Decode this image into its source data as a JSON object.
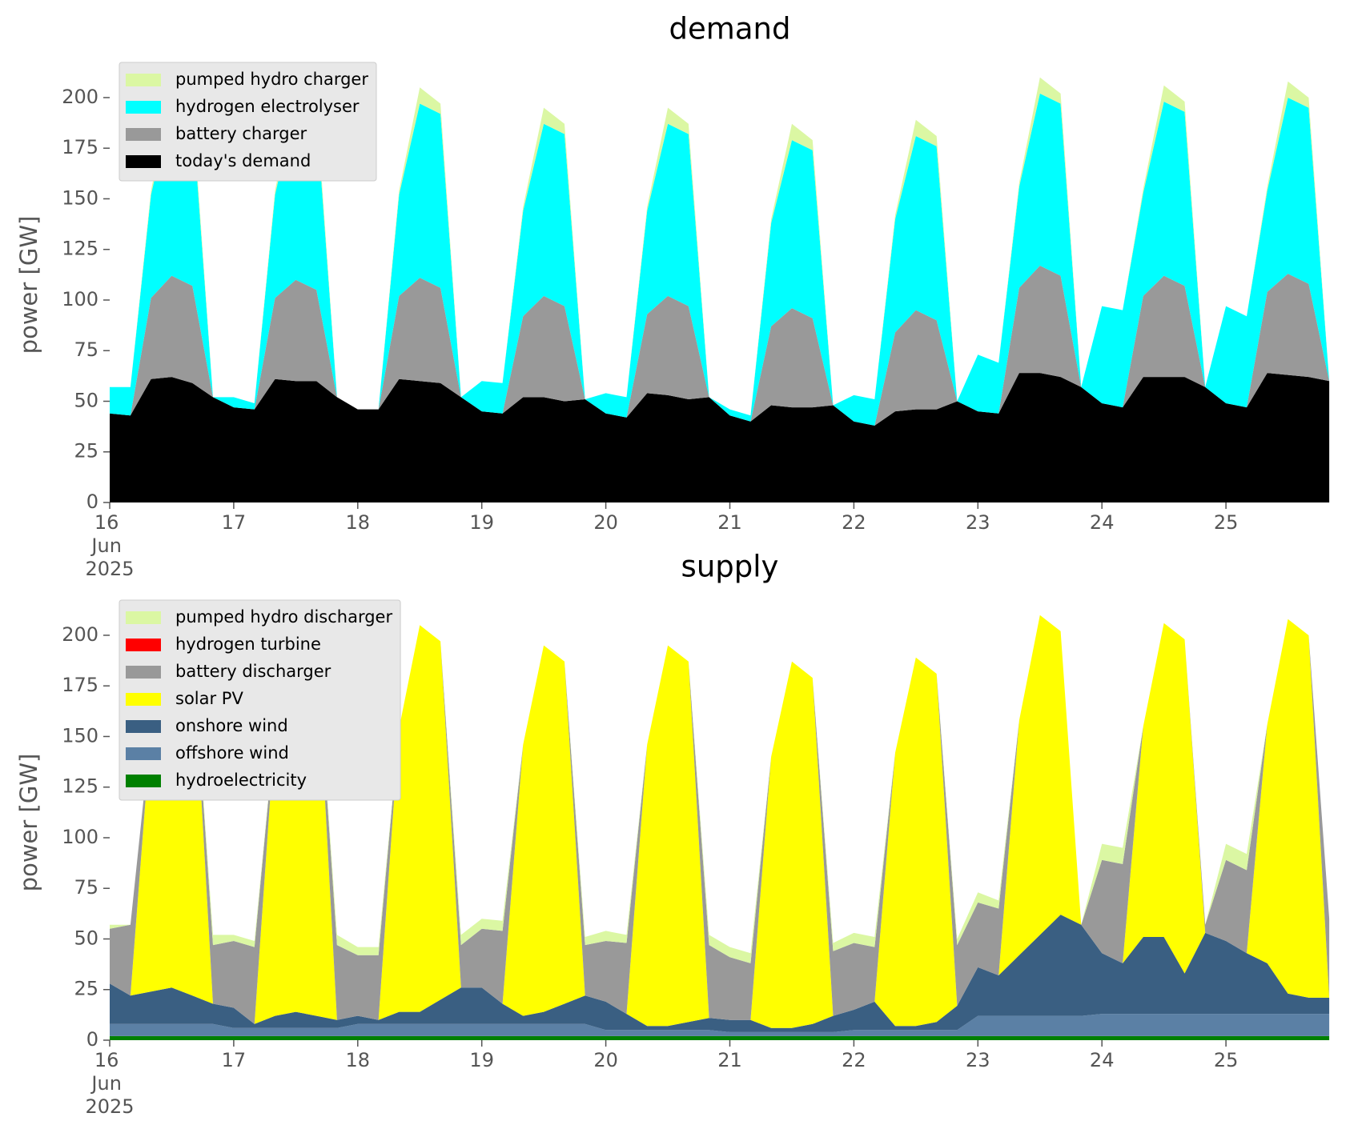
{
  "chart_data": [
    {
      "type": "area",
      "title": "demand",
      "ylabel": "power [GW]",
      "legend": "upper left",
      "x": [
        16,
        16.167,
        16.333,
        16.5,
        16.667,
        16.833,
        17,
        17.167,
        17.333,
        17.5,
        17.667,
        17.833,
        18,
        18.167,
        18.333,
        18.5,
        18.667,
        18.833,
        19,
        19.167,
        19.333,
        19.5,
        19.667,
        19.833,
        20,
        20.167,
        20.333,
        20.5,
        20.667,
        20.833,
        21,
        21.167,
        21.333,
        21.5,
        21.667,
        21.833,
        22,
        22.167,
        22.333,
        22.5,
        22.667,
        22.833,
        23,
        23.167,
        23.333,
        23.5,
        23.667,
        23.833,
        24,
        24.167,
        24.333,
        24.5,
        24.667,
        24.833,
        25,
        25.167,
        25.333,
        25.5,
        25.667,
        25.833
      ],
      "xlim": [
        16,
        26
      ],
      "xticks": [
        {
          "value": 16,
          "label": "16\nJun\n2025"
        },
        17,
        18,
        19,
        20,
        21,
        22,
        23,
        24,
        25
      ],
      "ylim": [
        0,
        215
      ],
      "yticks": [
        0,
        25,
        50,
        75,
        100,
        125,
        150,
        175,
        200
      ],
      "series": [
        {
          "name": "pumped hydro charger",
          "color": "#dbf7a3",
          "values": [
            0,
            0,
            2,
            8,
            5,
            0,
            0,
            0,
            2,
            8,
            5,
            0,
            0,
            0,
            2,
            8,
            5,
            0,
            0,
            0,
            2,
            8,
            5,
            0,
            0,
            0,
            2,
            8,
            5,
            0,
            0,
            0,
            2,
            8,
            5,
            0,
            0,
            0,
            2,
            8,
            5,
            0,
            0,
            0,
            2,
            8,
            5,
            0,
            0,
            0,
            2,
            8,
            5,
            0,
            0,
            0,
            2,
            8,
            5,
            0
          ]
        },
        {
          "name": "hydrogen electrolyser",
          "color": "#00ffff",
          "values": [
            13,
            14,
            51,
            85,
            85,
            0,
            5,
            3,
            51,
            87,
            87,
            0,
            0,
            0,
            50,
            86,
            86,
            0,
            15,
            15,
            52,
            85,
            85,
            0,
            10,
            10,
            51,
            85,
            85,
            0,
            3,
            3,
            51,
            83,
            83,
            0,
            13,
            13,
            56,
            86,
            86,
            0,
            28,
            25,
            50,
            85,
            85,
            0,
            48,
            48,
            51,
            86,
            86,
            0,
            48,
            45,
            50,
            87,
            87,
            0
          ]
        },
        {
          "name": "battery charger",
          "color": "#999999",
          "values": [
            0,
            0,
            40,
            50,
            48,
            0,
            0,
            0,
            40,
            50,
            45,
            0,
            0,
            0,
            41,
            51,
            47,
            0,
            0,
            0,
            40,
            50,
            47,
            0,
            0,
            0,
            39,
            49,
            46,
            0,
            0,
            0,
            39,
            49,
            44,
            0,
            0,
            0,
            39,
            49,
            44,
            0,
            0,
            0,
            42,
            53,
            50,
            0,
            0,
            0,
            40,
            50,
            45,
            0,
            0,
            0,
            40,
            50,
            46,
            0
          ]
        },
        {
          "name": "today's demand",
          "color": "#000000",
          "values": [
            44,
            43,
            61,
            62,
            59,
            52,
            47,
            46,
            61,
            60,
            60,
            52,
            46,
            46,
            61,
            60,
            59,
            52,
            45,
            44,
            52,
            52,
            50,
            51,
            44,
            42,
            54,
            53,
            51,
            52,
            43,
            40,
            48,
            47,
            47,
            48,
            40,
            38,
            45,
            46,
            46,
            50,
            45,
            44,
            64,
            64,
            62,
            57,
            49,
            47,
            62,
            62,
            62,
            57,
            49,
            47,
            64,
            63,
            62,
            60
          ]
        }
      ]
    },
    {
      "type": "area",
      "title": "supply",
      "ylabel": "power [GW]",
      "legend": "upper left",
      "x": [
        16,
        16.167,
        16.333,
        16.5,
        16.667,
        16.833,
        17,
        17.167,
        17.333,
        17.5,
        17.667,
        17.833,
        18,
        18.167,
        18.333,
        18.5,
        18.667,
        18.833,
        19,
        19.167,
        19.333,
        19.5,
        19.667,
        19.833,
        20,
        20.167,
        20.333,
        20.5,
        20.667,
        20.833,
        21,
        21.167,
        21.333,
        21.5,
        21.667,
        21.833,
        22,
        22.167,
        22.333,
        22.5,
        22.667,
        22.833,
        23,
        23.167,
        23.333,
        23.5,
        23.667,
        23.833,
        24,
        24.167,
        24.333,
        24.5,
        24.667,
        24.833,
        25,
        25.167,
        25.333,
        25.5,
        25.667,
        25.833
      ],
      "xlim": [
        16,
        26
      ],
      "xticks": [
        {
          "value": 16,
          "label": "16\nJun\n2025"
        },
        17,
        18,
        19,
        20,
        21,
        22,
        23,
        24,
        25
      ],
      "ylim": [
        0,
        215
      ],
      "yticks": [
        0,
        25,
        50,
        75,
        100,
        125,
        150,
        175,
        200
      ],
      "series": [
        {
          "name": "pumped hydro discharger",
          "color": "#dbf7a3",
          "values": [
            2,
            0,
            0,
            0,
            0,
            5,
            3,
            3,
            0,
            0,
            0,
            5,
            4,
            4,
            0,
            0,
            0,
            5,
            5,
            5,
            0,
            0,
            0,
            4,
            5,
            4,
            0,
            0,
            0,
            5,
            5,
            5,
            0,
            0,
            0,
            4,
            5,
            5,
            0,
            0,
            0,
            3,
            5,
            4,
            0,
            0,
            0,
            0,
            8,
            8,
            0,
            0,
            0,
            0,
            8,
            8,
            0,
            0,
            0,
            0
          ]
        },
        {
          "name": "hydrogen turbine",
          "color": "#ff0000",
          "values": [
            0,
            0,
            0,
            0,
            0,
            0,
            0,
            0,
            0,
            0,
            0,
            0,
            0,
            0,
            0,
            0,
            0,
            0,
            0,
            0,
            0,
            0,
            0,
            0,
            0,
            0,
            0,
            0,
            0,
            0,
            0,
            0,
            0,
            0,
            0,
            0,
            0,
            0,
            0,
            0,
            0,
            0,
            0,
            0,
            0,
            0,
            0,
            0,
            0,
            0,
            0,
            0,
            0,
            0,
            0,
            0,
            0,
            0,
            0,
            0
          ]
        },
        {
          "name": "battery discharger",
          "color": "#999999",
          "values": [
            27,
            35,
            0,
            0,
            0,
            29,
            33,
            38,
            0,
            0,
            0,
            37,
            30,
            32,
            0,
            0,
            0,
            21,
            29,
            36,
            0,
            0,
            0,
            25,
            30,
            35,
            0,
            0,
            0,
            36,
            31,
            28,
            0,
            0,
            0,
            32,
            33,
            27,
            0,
            0,
            0,
            30,
            32,
            33,
            0,
            0,
            0,
            0,
            46,
            49,
            0,
            0,
            0,
            4,
            40,
            41,
            0,
            0,
            0,
            39
          ]
        },
        {
          "name": "solar PV",
          "color": "#ffff00",
          "values": [
            0,
            0,
            130,
            179,
            175,
            0,
            0,
            0,
            142,
            191,
            185,
            0,
            0,
            0,
            140,
            191,
            177,
            0,
            0,
            0,
            134,
            181,
            169,
            0,
            0,
            0,
            139,
            188,
            178,
            0,
            0,
            0,
            134,
            181,
            171,
            0,
            0,
            0,
            135,
            182,
            172,
            0,
            0,
            0,
            116,
            158,
            140,
            0,
            0,
            0,
            104,
            155,
            165,
            0,
            0,
            0,
            118,
            185,
            179,
            0
          ]
        },
        {
          "name": "onshore wind",
          "color": "#3a5f82",
          "values": [
            20,
            14,
            16,
            18,
            14,
            10,
            10,
            2,
            6,
            8,
            6,
            4,
            4,
            2,
            6,
            6,
            12,
            18,
            18,
            10,
            4,
            6,
            10,
            14,
            14,
            8,
            2,
            2,
            4,
            6,
            6,
            6,
            2,
            2,
            4,
            8,
            10,
            14,
            2,
            2,
            4,
            12,
            24,
            20,
            30,
            40,
            50,
            45,
            30,
            25,
            38,
            38,
            20,
            40,
            36,
            30,
            25,
            10,
            8,
            8
          ]
        },
        {
          "name": "offshore wind",
          "color": "#5b80a5",
          "values": [
            6,
            6,
            6,
            6,
            6,
            6,
            4,
            4,
            4,
            4,
            4,
            4,
            6,
            6,
            6,
            6,
            6,
            6,
            6,
            6,
            6,
            6,
            6,
            6,
            3,
            3,
            3,
            3,
            3,
            3,
            2,
            2,
            2,
            2,
            2,
            2,
            3,
            3,
            3,
            3,
            3,
            3,
            10,
            10,
            10,
            10,
            10,
            10,
            11,
            11,
            11,
            11,
            11,
            11,
            11,
            11,
            11,
            11,
            11,
            11
          ]
        },
        {
          "name": "hydroelectricity",
          "color": "#008000",
          "values": [
            2,
            2,
            2,
            2,
            2,
            2,
            2,
            2,
            2,
            2,
            2,
            2,
            2,
            2,
            2,
            2,
            2,
            2,
            2,
            2,
            2,
            2,
            2,
            2,
            2,
            2,
            2,
            2,
            2,
            2,
            2,
            2,
            2,
            2,
            2,
            2,
            2,
            2,
            2,
            2,
            2,
            2,
            2,
            2,
            2,
            2,
            2,
            2,
            2,
            2,
            2,
            2,
            2,
            2,
            2,
            2,
            2,
            2,
            2,
            2
          ]
        }
      ]
    }
  ]
}
